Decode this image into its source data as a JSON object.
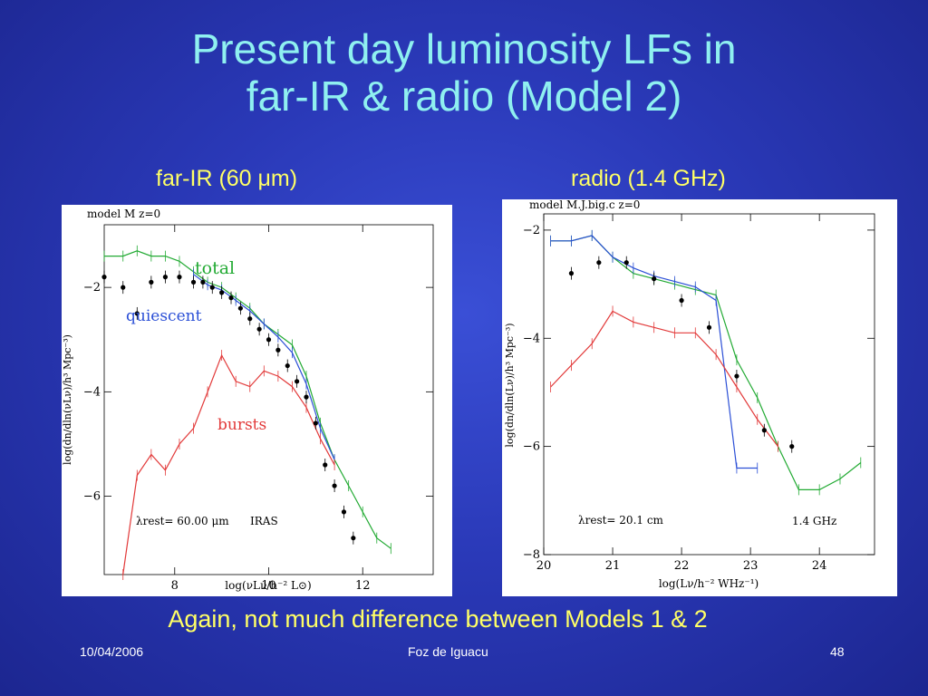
{
  "slide": {
    "title_line1": "Present day luminosity LFs in",
    "title_line2": "far-IR & radio (Model 2)",
    "subtitle_left": "far-IR (60 μm)",
    "subtitle_right": "radio (1.4 GHz)",
    "bottom_message": "Again, not much difference between Models 1 & 2",
    "footer_date": "10/04/2006",
    "footer_center": "Foz de Iguacu",
    "footer_page": "48"
  },
  "colors": {
    "total": "#22aa33",
    "quiescent": "#2b4fd6",
    "bursts": "#e23a3a",
    "data": "#000000",
    "title": "#8ff0f0",
    "accent_text": "#ffff66"
  },
  "chart_data": [
    {
      "type": "line",
      "header": "model M  z=0",
      "xlabel": "log(νLν/h⁻² L⊙)",
      "ylabel": "log(dn/dln(νLν)/h³ Mpc⁻³)",
      "xlim": [
        6.5,
        13.5
      ],
      "ylim": [
        -7.5,
        -0.8
      ],
      "xticks": [
        8,
        10,
        12
      ],
      "yticks": [
        -2,
        -4,
        -6
      ],
      "lambda_label": "λrest= 60.00 μm",
      "survey_label": "IRAS",
      "series": [
        {
          "name": "total",
          "color": "#22aa33",
          "x": [
            6.5,
            6.9,
            7.2,
            7.5,
            7.8,
            8.1,
            8.4,
            8.7,
            9.0,
            9.3,
            9.6,
            9.9,
            10.2,
            10.5,
            10.8,
            11.1,
            11.4,
            11.7,
            12.0,
            12.3,
            12.6
          ],
          "y": [
            -1.4,
            -1.4,
            -1.3,
            -1.4,
            -1.4,
            -1.5,
            -1.7,
            -1.9,
            -2.0,
            -2.2,
            -2.4,
            -2.7,
            -2.9,
            -3.1,
            -3.7,
            -4.6,
            -5.3,
            -5.8,
            -6.3,
            -6.8,
            -7.0
          ]
        },
        {
          "name": "quiescent",
          "color": "#2b4fd6",
          "x": [
            8.4,
            8.7,
            9.0,
            9.3,
            9.6,
            9.9,
            10.2,
            10.5,
            10.8,
            11.1,
            11.4
          ],
          "y": [
            -1.75,
            -1.95,
            -2.05,
            -2.25,
            -2.45,
            -2.7,
            -2.95,
            -3.25,
            -3.85,
            -4.7,
            -5.3
          ]
        },
        {
          "name": "bursts",
          "color": "#e23a3a",
          "x": [
            6.9,
            7.2,
            7.5,
            7.8,
            8.1,
            8.4,
            8.7,
            9.0,
            9.3,
            9.6,
            9.9,
            10.2,
            10.5,
            10.8,
            11.1,
            11.4
          ],
          "y": [
            -7.8,
            -5.6,
            -5.2,
            -5.5,
            -5.0,
            -4.7,
            -4.0,
            -3.3,
            -3.8,
            -3.9,
            -3.6,
            -3.7,
            -3.9,
            -4.3,
            -4.9,
            -5.4
          ]
        }
      ],
      "data_points": {
        "x": [
          6.5,
          6.9,
          7.2,
          7.5,
          7.8,
          8.1,
          8.4,
          8.6,
          8.8,
          9.0,
          9.2,
          9.4,
          9.6,
          9.8,
          10.0,
          10.2,
          10.4,
          10.6,
          10.8,
          11.0,
          11.2,
          11.4,
          11.6,
          11.8
        ],
        "y": [
          -1.8,
          -2.0,
          -2.5,
          -1.9,
          -1.8,
          -1.8,
          -1.9,
          -1.9,
          -2.0,
          -2.1,
          -2.2,
          -2.4,
          -2.6,
          -2.8,
          -3.0,
          -3.2,
          -3.5,
          -3.8,
          -4.1,
          -4.6,
          -5.4,
          -5.8,
          -6.3,
          -6.8
        ]
      },
      "annotations": [
        {
          "text": "total",
          "color": "#22aa33"
        },
        {
          "text": "quiescent",
          "color": "#2b4fd6"
        },
        {
          "text": "bursts",
          "color": "#e23a3a"
        }
      ]
    },
    {
      "type": "line",
      "header": "model  M.J.big.c  z=0",
      "xlabel": "log(Lν/h⁻² WHz⁻¹)",
      "ylabel": "log(dn/dln(Lν)/h³ Mpc⁻³)",
      "xlim": [
        20,
        24.8
      ],
      "ylim": [
        -8,
        -1.7
      ],
      "xticks": [
        20,
        21,
        22,
        23,
        24
      ],
      "yticks": [
        -2,
        -4,
        -6,
        -8
      ],
      "lambda_label": "λrest=  20.1  cm",
      "survey_label": "1.4  GHz",
      "series": [
        {
          "name": "total",
          "color": "#22aa33",
          "x": [
            20.1,
            20.4,
            20.7,
            21.0,
            21.3,
            21.6,
            21.9,
            22.2,
            22.5,
            22.8,
            23.1,
            23.4,
            23.7,
            24.0,
            24.3,
            24.6
          ],
          "y": [
            -2.2,
            -2.2,
            -2.1,
            -2.5,
            -2.8,
            -2.9,
            -3.0,
            -3.1,
            -3.2,
            -4.4,
            -5.1,
            -6.0,
            -6.8,
            -6.8,
            -6.6,
            -6.3
          ]
        },
        {
          "name": "quiescent",
          "color": "#2b4fd6",
          "x": [
            20.1,
            20.4,
            20.7,
            21.0,
            21.3,
            21.6,
            21.9,
            22.2,
            22.5,
            22.8,
            23.1
          ],
          "y": [
            -2.2,
            -2.2,
            -2.1,
            -2.5,
            -2.7,
            -2.85,
            -2.95,
            -3.05,
            -3.3,
            -6.4,
            -6.4
          ]
        },
        {
          "name": "bursts",
          "color": "#e23a3a",
          "x": [
            20.1,
            20.4,
            20.7,
            21.0,
            21.3,
            21.6,
            21.9,
            22.2,
            22.5,
            22.8,
            23.1,
            23.4
          ],
          "y": [
            -4.9,
            -4.5,
            -4.1,
            -3.5,
            -3.7,
            -3.8,
            -3.9,
            -3.9,
            -4.3,
            -4.9,
            -5.5,
            -6.0
          ]
        }
      ],
      "data_points": {
        "x": [
          20.4,
          20.8,
          21.2,
          21.6,
          22.0,
          22.4,
          22.8,
          23.2,
          23.6
        ],
        "y": [
          -2.8,
          -2.6,
          -2.6,
          -2.9,
          -3.3,
          -3.8,
          -4.7,
          -5.7,
          -6.0
        ]
      }
    }
  ]
}
